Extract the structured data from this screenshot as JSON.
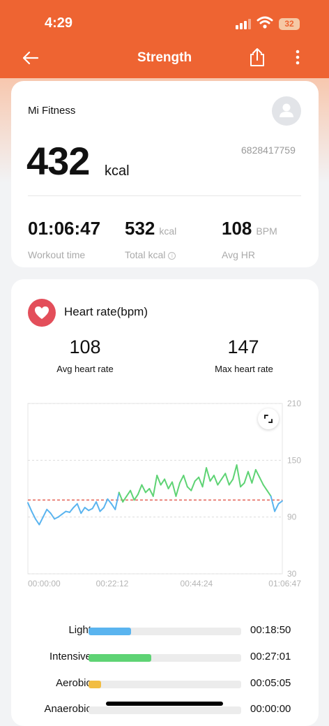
{
  "status": {
    "time": "4:29",
    "battery": "32"
  },
  "nav": {
    "title": "Strength"
  },
  "summary": {
    "brand": "Mi Fitness",
    "kcal": "432",
    "kcal_unit": "kcal",
    "device_id": "6828417759",
    "stats": [
      {
        "value": "01:06:47",
        "unit": "",
        "label": "Workout time"
      },
      {
        "value": "532",
        "unit": "kcal",
        "label": "Total kcal"
      },
      {
        "value": "108",
        "unit": "BPM",
        "label": "Avg HR"
      }
    ]
  },
  "heart_rate": {
    "title": "Heart rate(bpm)",
    "avg_value": "108",
    "avg_label": "Avg heart rate",
    "max_value": "147",
    "max_label": "Max heart rate",
    "zones": [
      {
        "name": "Light",
        "time": "00:18:50",
        "fraction": 0.28,
        "color": "#5ab4ef"
      },
      {
        "name": "Intensive",
        "time": "00:27:01",
        "fraction": 0.41,
        "color": "#5ed374"
      },
      {
        "name": "Aerobic",
        "time": "00:05:05",
        "fraction": 0.08,
        "color": "#f2bd42"
      },
      {
        "name": "Anaerobic",
        "time": "00:00:00",
        "fraction": 0.0,
        "color": "#ee6432"
      }
    ]
  },
  "chart_data": {
    "type": "line",
    "title": "Heart rate(bpm)",
    "xlabel": "",
    "ylabel": "",
    "ylim": [
      30,
      210
    ],
    "y_ticks": [
      "210",
      "150",
      "90",
      "30"
    ],
    "x_ticks": [
      "00:00:00",
      "00:22:12",
      "00:44:24",
      "01:06:47"
    ],
    "avg_line": 108,
    "x_minutes": [
      0,
      1,
      2,
      3,
      4,
      5,
      6,
      7,
      8,
      9,
      10,
      11,
      12,
      13,
      14,
      15,
      16,
      17,
      18,
      19,
      20,
      21,
      22,
      23,
      24,
      25,
      26,
      27,
      28,
      29,
      30,
      31,
      32,
      33,
      34,
      35,
      36,
      37,
      38,
      39,
      40,
      41,
      42,
      43,
      44,
      45,
      46,
      47,
      48,
      49,
      50,
      51,
      52,
      53,
      54,
      55,
      56,
      57,
      58,
      59,
      60,
      61,
      62,
      63,
      64,
      65,
      66,
      67
    ],
    "series": [
      {
        "name": "",
        "values": [
          105,
          96,
          88,
          82,
          90,
          98,
          94,
          88,
          90,
          93,
          96,
          95,
          100,
          104,
          94,
          100,
          97,
          99,
          106,
          96,
          100,
          109,
          104,
          98,
          116,
          106,
          112,
          118,
          108,
          114,
          124,
          116,
          120,
          112,
          134,
          124,
          130,
          120,
          127,
          112,
          126,
          134,
          122,
          118,
          128,
          132,
          122,
          142,
          128,
          134,
          124,
          130,
          136,
          124,
          130,
          145,
          122,
          126,
          138,
          126,
          140,
          132,
          124,
          118,
          112,
          96,
          104,
          107
        ],
        "colors": {
          "light": "#5ab4ef",
          "intensive": "#5ed374",
          "aerobic": "#f2bd42"
        }
      }
    ]
  }
}
